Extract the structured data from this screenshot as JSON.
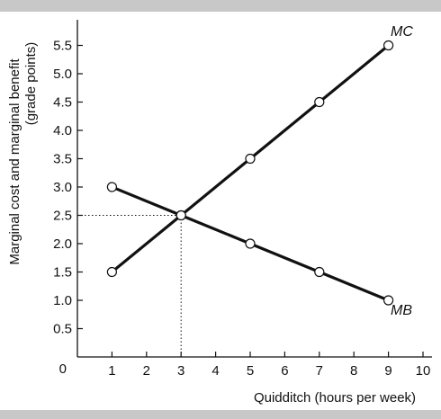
{
  "chart_data": {
    "type": "line",
    "xlabel": "Quidditch (hours per week)",
    "ylabel_line1": "Marginal cost and marginal benefit",
    "ylabel_line2": "(grade points)",
    "xlim": [
      0,
      10
    ],
    "ylim": [
      0,
      5.5
    ],
    "origin_label": "0",
    "x_ticks": [
      "1",
      "2",
      "3",
      "4",
      "5",
      "6",
      "7",
      "8",
      "9",
      "10"
    ],
    "y_ticks": [
      "0.5",
      "1.0",
      "1.5",
      "2.0",
      "2.5",
      "3.0",
      "3.5",
      "4.0",
      "4.5",
      "5.0",
      "5.5"
    ],
    "series": [
      {
        "name": "MC",
        "x": [
          1,
          3,
          5,
          7,
          9
        ],
        "y": [
          1.5,
          2.5,
          3.5,
          4.5,
          5.5
        ]
      },
      {
        "name": "MB",
        "x": [
          1,
          3,
          5,
          7,
          9
        ],
        "y": [
          3.0,
          2.5,
          2.0,
          1.5,
          1.0
        ]
      }
    ],
    "equilibrium": {
      "x": 3,
      "y": 2.5
    },
    "grid": false,
    "colors": {
      "line": "#111111",
      "marker_fill": "#ffffff",
      "band": "#c8c8c8"
    }
  }
}
